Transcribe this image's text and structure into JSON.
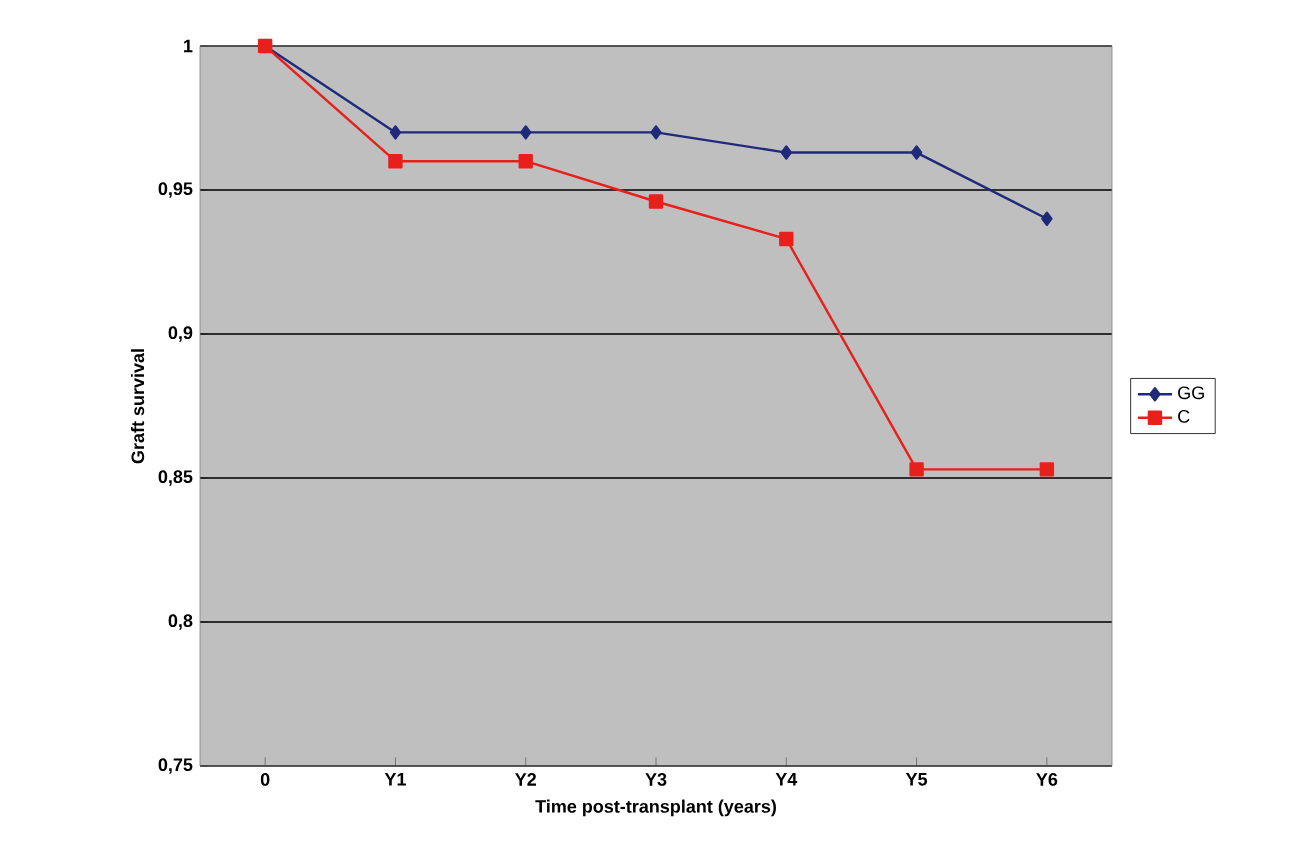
{
  "chart_data": {
    "type": "line",
    "xlabel": "Time post-transplant (years)",
    "ylabel": "Graft survival",
    "categories": [
      "0",
      "Y1",
      "Y2",
      "Y3",
      "Y4",
      "Y5",
      "Y6"
    ],
    "series": [
      {
        "name": "GG",
        "color": "#1f2a7a",
        "marker": "diamond",
        "values": [
          1,
          0.97,
          0.97,
          0.97,
          0.963,
          0.963,
          0.94
        ]
      },
      {
        "name": "C",
        "color": "#e8201c",
        "marker": "square",
        "values": [
          1,
          0.96,
          0.96,
          0.946,
          0.933,
          0.853,
          0.853
        ]
      }
    ],
    "ylim": [
      0.75,
      1
    ],
    "yticks": [
      {
        "value": 0.75,
        "label": "0,75"
      },
      {
        "value": 0.8,
        "label": "0,8"
      },
      {
        "value": 0.85,
        "label": "0,85"
      },
      {
        "value": 0.9,
        "label": "0,9"
      },
      {
        "value": 0.95,
        "label": "0,95"
      },
      1
    ],
    "grid": "y",
    "legend": "right",
    "line_style": "solid"
  }
}
